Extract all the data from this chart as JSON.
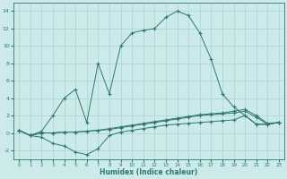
{
  "xlabel": "Humidex (Indice chaleur)",
  "x": [
    0,
    1,
    2,
    3,
    4,
    5,
    6,
    7,
    8,
    9,
    10,
    11,
    12,
    13,
    14,
    15,
    16,
    17,
    18,
    19,
    20,
    21,
    22,
    23
  ],
  "line_main": [
    0.3,
    -0.3,
    0.2,
    2.0,
    4.0,
    5.0,
    1.2,
    8.0,
    4.5,
    10.0,
    11.5,
    11.8,
    12.0,
    13.3,
    14.0,
    13.5,
    11.5,
    8.5,
    4.5,
    3.0,
    2.0,
    1.0,
    1.0,
    1.2
  ],
  "line_dip": [
    0.3,
    -0.3,
    -0.5,
    -1.2,
    -1.5,
    -2.2,
    -2.5,
    -1.8,
    -0.3,
    0.1,
    0.3,
    0.5,
    0.7,
    0.9,
    1.0,
    1.1,
    1.2,
    1.3,
    1.4,
    1.5,
    2.0,
    1.0,
    1.0,
    1.2
  ],
  "line_flat1": [
    0.3,
    -0.3,
    0.0,
    0.0,
    0.1,
    0.1,
    0.2,
    0.3,
    0.5,
    0.7,
    0.9,
    1.1,
    1.3,
    1.5,
    1.7,
    1.9,
    2.1,
    2.2,
    2.3,
    2.5,
    2.7,
    2.0,
    1.1,
    1.2
  ],
  "line_flat2": [
    0.3,
    -0.3,
    0.0,
    0.0,
    0.1,
    0.1,
    0.2,
    0.3,
    0.4,
    0.6,
    0.8,
    1.0,
    1.2,
    1.4,
    1.6,
    1.8,
    2.0,
    2.1,
    2.2,
    2.3,
    2.5,
    1.8,
    1.0,
    1.2
  ],
  "line_color": "#2a7a6a",
  "bg_color": "#cceae8",
  "grid_color": "#aad4d0",
  "ylim": [
    -3,
    15
  ],
  "yticks": [
    -2,
    0,
    2,
    4,
    6,
    8,
    10,
    12,
    14
  ],
  "xticks": [
    0,
    1,
    2,
    3,
    4,
    5,
    6,
    7,
    8,
    9,
    10,
    11,
    12,
    13,
    14,
    15,
    16,
    17,
    18,
    19,
    20,
    21,
    22,
    23
  ]
}
